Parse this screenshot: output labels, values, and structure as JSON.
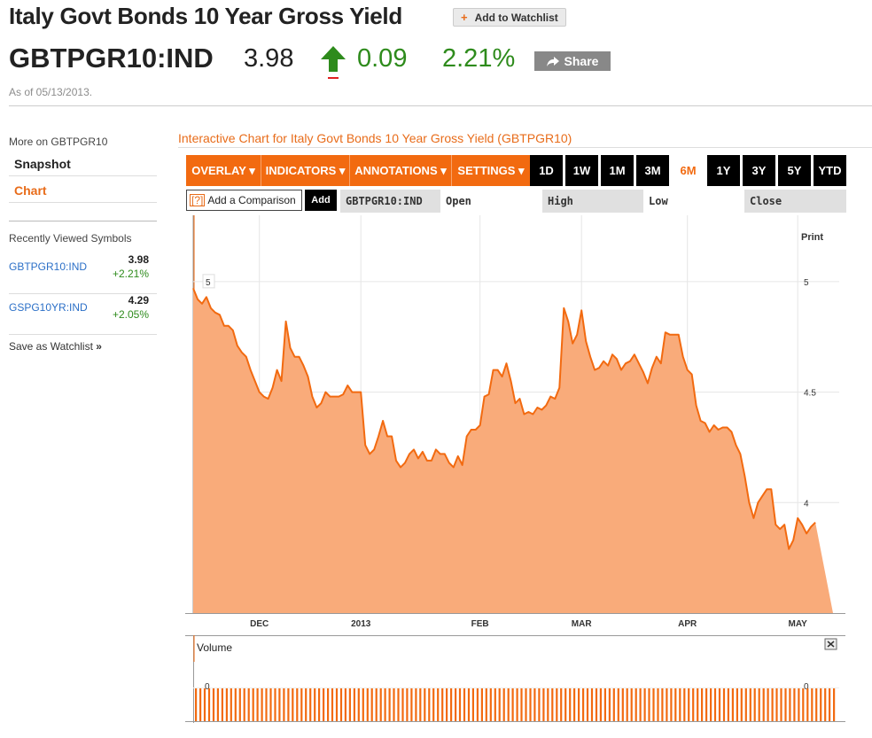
{
  "header": {
    "title": "Italy Govt Bonds 10 Year Gross Yield",
    "watchlist_label": "Add to Watchlist",
    "ticker": "GBTPGR10:IND",
    "price": "3.98",
    "change": "0.09",
    "change_pct": "2.21%",
    "share_label": "Share",
    "as_of": "As of 05/13/2013."
  },
  "sidebar": {
    "more_on": "More on GBTPGR10",
    "items": [
      {
        "label": "Snapshot"
      },
      {
        "label": "Chart"
      }
    ],
    "recent_title": "Recently Viewed Symbols",
    "recent": [
      {
        "symbol": "GBTPGR10:IND",
        "price": "3.98",
        "change": "+2.21%"
      },
      {
        "symbol": "GSPG10YR:IND",
        "price": "4.29",
        "change": "+2.05%"
      }
    ],
    "save_watchlist": "Save as Watchlist"
  },
  "chart_header": {
    "title": "Interactive Chart for Italy Govt Bonds 10 Year Gross Yield (GBTPGR10)",
    "tools": [
      {
        "label": "OVERLAY ▾"
      },
      {
        "label": "INDICATORS ▾"
      },
      {
        "label": "ANNOTATIONS ▾"
      },
      {
        "label": "SETTINGS ▾"
      }
    ],
    "ranges": [
      {
        "label": "1D"
      },
      {
        "label": "1W"
      },
      {
        "label": "1M"
      },
      {
        "label": "3M"
      },
      {
        "label": "6M"
      },
      {
        "label": "1Y"
      },
      {
        "label": "3Y"
      },
      {
        "label": "5Y"
      },
      {
        "label": "YTD"
      }
    ],
    "active_range": "6M",
    "compare_help": "[?]",
    "compare_label": "Add a Comparison",
    "add_label": "Add",
    "columns": {
      "symbol": "GBTPGR10:IND",
      "open": "Open",
      "high": "High",
      "low": "Low",
      "close": "Close"
    }
  },
  "colors": {
    "accent": "#f26a10",
    "line": "#f26a10",
    "fill": "#f9ab7a",
    "up": "#2e8b1c",
    "link": "#2b6fc7"
  },
  "chart_data": {
    "type": "area",
    "print_label": "Print",
    "ylim": [
      3.5,
      5.2
    ],
    "yticks": [
      4,
      4.5,
      5
    ],
    "ytick_labels": [
      "4",
      "4.5",
      "5"
    ],
    "xtick_labels": [
      "DEC",
      "2013",
      "FEB",
      "MAR",
      "APR",
      "MAY"
    ],
    "xtick_index": [
      15,
      38,
      65,
      88,
      112,
      137
    ],
    "x_count": 146,
    "grid": true,
    "values": [
      4.97,
      4.92,
      4.9,
      4.93,
      4.88,
      4.86,
      4.85,
      4.8,
      4.8,
      4.78,
      4.71,
      4.68,
      4.66,
      4.6,
      4.55,
      4.5,
      4.48,
      4.47,
      4.52,
      4.6,
      4.55,
      4.82,
      4.7,
      4.66,
      4.66,
      4.62,
      4.57,
      4.48,
      4.43,
      4.45,
      4.5,
      4.48,
      4.48,
      4.48,
      4.49,
      4.53,
      4.5,
      4.5,
      4.5,
      4.26,
      4.22,
      4.24,
      4.3,
      4.37,
      4.3,
      4.3,
      4.19,
      4.16,
      4.18,
      4.22,
      4.24,
      4.2,
      4.23,
      4.19,
      4.19,
      4.24,
      4.22,
      4.22,
      4.18,
      4.16,
      4.21,
      4.17,
      4.3,
      4.33,
      4.33,
      4.35,
      4.48,
      4.49,
      4.6,
      4.6,
      4.57,
      4.63,
      4.55,
      4.45,
      4.47,
      4.4,
      4.41,
      4.4,
      4.43,
      4.42,
      4.44,
      4.48,
      4.47,
      4.52,
      4.88,
      4.82,
      4.72,
      4.76,
      4.87,
      4.73,
      4.66,
      4.6,
      4.61,
      4.64,
      4.62,
      4.67,
      4.65,
      4.6,
      4.63,
      4.64,
      4.67,
      4.63,
      4.59,
      4.54,
      4.61,
      4.66,
      4.63,
      4.77,
      4.76,
      4.76,
      4.76,
      4.66,
      4.6,
      4.58,
      4.44,
      4.37,
      4.36,
      4.32,
      4.35,
      4.33,
      4.34,
      4.34,
      4.32,
      4.26,
      4.22,
      4.12,
      4.0,
      3.93,
      4.0,
      4.03,
      4.06,
      4.06,
      3.9,
      3.88,
      3.9,
      3.79,
      3.83,
      3.93,
      3.9,
      3.86,
      3.89,
      3.91
    ],
    "volume": {
      "label": "Volume",
      "tick_label": "0",
      "bar_count": 146
    }
  }
}
